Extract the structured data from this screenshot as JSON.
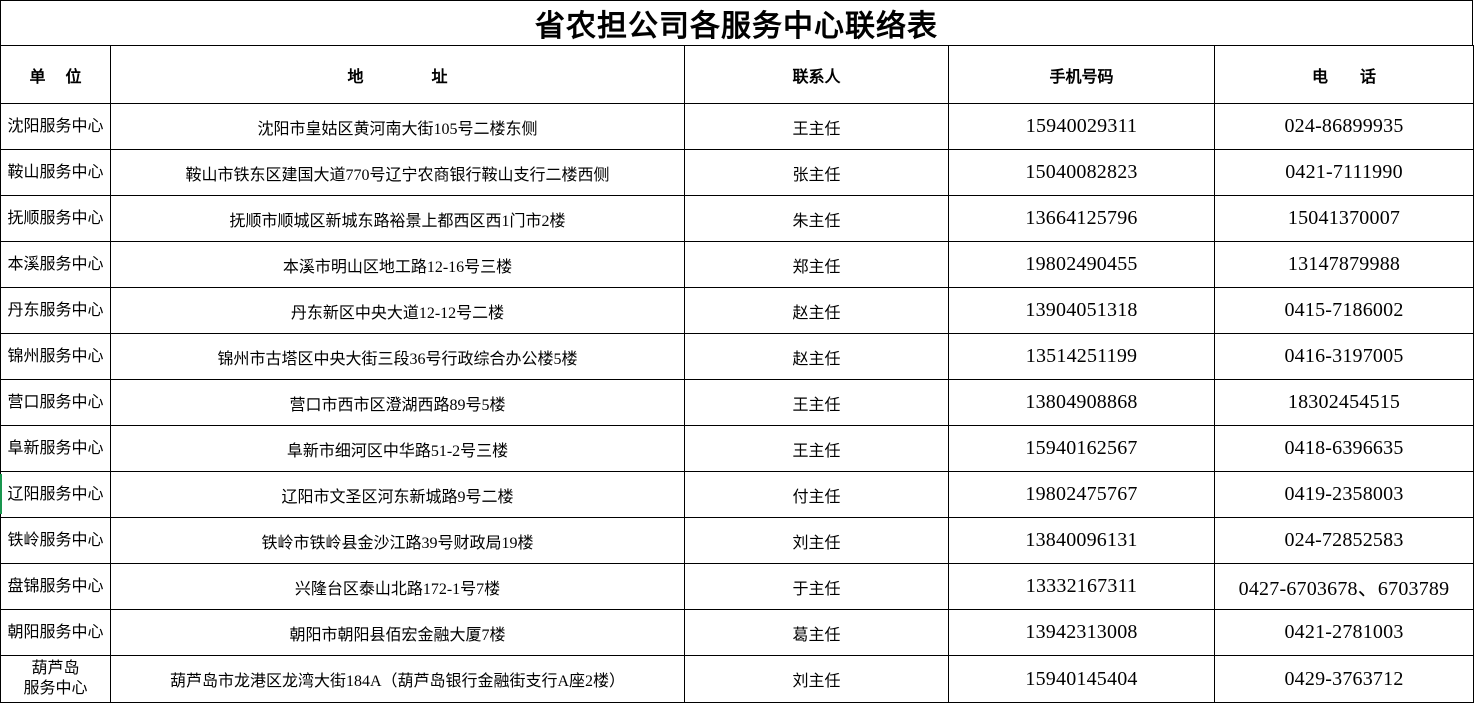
{
  "title": "省农担公司各服务中心联络表",
  "table": {
    "headers": {
      "unit": "单　 位",
      "address": "地　　　　 址",
      "contact": "联系人",
      "mobile": "手机号码",
      "phone": "电　　话"
    },
    "rows": [
      {
        "unit": "沈阳服务中心",
        "address": "沈阳市皇姑区黄河南大街105号二楼东侧",
        "contact": "王主任",
        "mobile": "15940029311",
        "phone": "024-86899935"
      },
      {
        "unit": "鞍山服务中心",
        "address": "鞍山市铁东区建国大道770号辽宁农商银行鞍山支行二楼西侧",
        "contact": "张主任",
        "mobile": "15040082823",
        "phone": "0421-7111990"
      },
      {
        "unit": "抚顺服务中心",
        "address": "抚顺市顺城区新城东路裕景上都西区西1门市2楼",
        "contact": "朱主任",
        "mobile": "13664125796",
        "phone": "15041370007"
      },
      {
        "unit": "本溪服务中心",
        "address": "本溪市明山区地工路12-16号三楼",
        "contact": "郑主任",
        "mobile": "19802490455",
        "phone": "13147879988"
      },
      {
        "unit": "丹东服务中心",
        "address": "丹东新区中央大道12-12号二楼",
        "contact": "赵主任",
        "mobile": "13904051318",
        "phone": "0415-7186002"
      },
      {
        "unit": "锦州服务中心",
        "address": "锦州市古塔区中央大街三段36号行政综合办公楼5楼",
        "contact": "赵主任",
        "mobile": "13514251199",
        "phone": "0416-3197005"
      },
      {
        "unit": "营口服务中心",
        "address": "营口市西市区澄湖西路89号5楼",
        "contact": "王主任",
        "mobile": "13804908868",
        "phone": "18302454515"
      },
      {
        "unit": "阜新服务中心",
        "address": "阜新市细河区中华路51-2号三楼",
        "contact": "王主任",
        "mobile": "15940162567",
        "phone": "0418-6396635"
      },
      {
        "unit": "辽阳服务中心",
        "address": "辽阳市文圣区河东新城路9号二楼",
        "contact": "付主任",
        "mobile": "19802475767",
        "phone": "0419-2358003"
      },
      {
        "unit": "铁岭服务中心",
        "address": "铁岭市铁岭县金沙江路39号财政局19楼",
        "contact": "刘主任",
        "mobile": "13840096131",
        "phone": "024-72852583"
      },
      {
        "unit": "盘锦服务中心",
        "address": "兴隆台区泰山北路172-1号7楼",
        "contact": "于主任",
        "mobile": "13332167311",
        "phone": "0427-6703678、6703789"
      },
      {
        "unit": "朝阳服务中心",
        "address": "朝阳市朝阳县佰宏金融大厦7楼",
        "contact": "葛主任",
        "mobile": "13942313008",
        "phone": "0421-2781003"
      },
      {
        "unit": "葫芦岛\n服务中心",
        "address": "葫芦岛市龙港区龙湾大街184A（葫芦岛银行金融街支行A座2楼）",
        "contact": "刘主任",
        "mobile": "15940145404",
        "phone": "0429-3763712"
      }
    ]
  },
  "colors": {
    "border": "#000000",
    "active_cell_indicator": "#18954e",
    "background": "#ffffff"
  }
}
